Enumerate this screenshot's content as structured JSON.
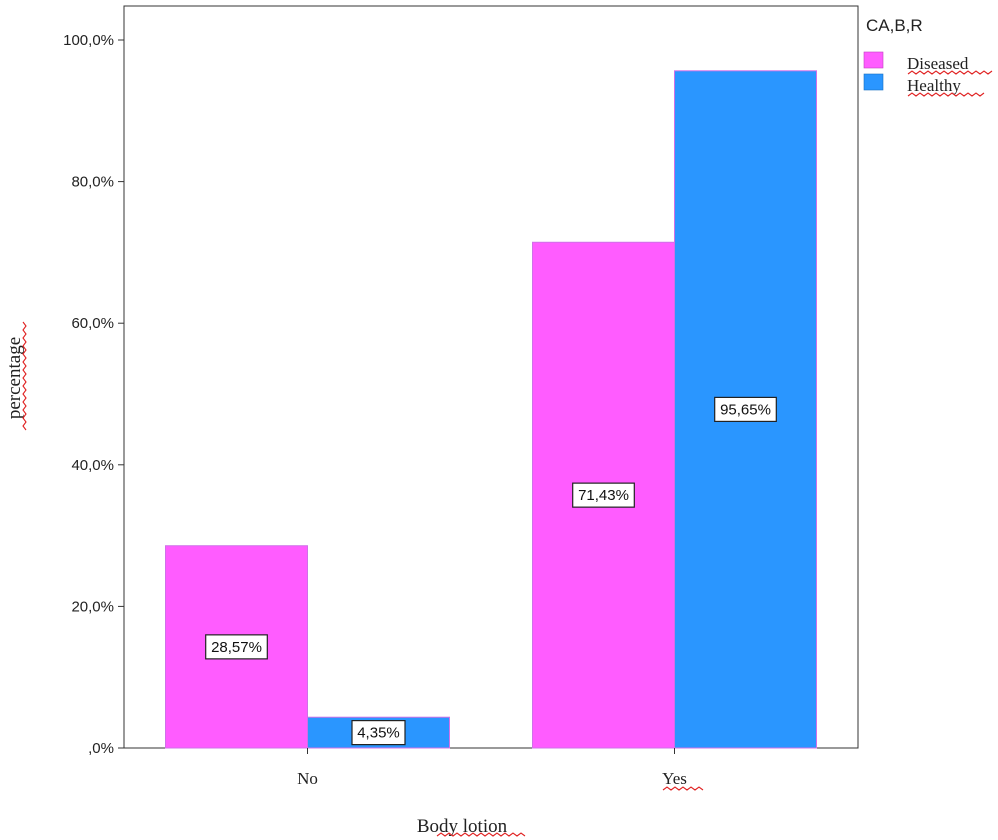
{
  "chart_data": {
    "type": "bar",
    "categories": [
      "No",
      "Yes"
    ],
    "series": [
      {
        "name": "Diseased",
        "values": [
          28.57,
          71.43
        ],
        "color": "#ff5cff"
      },
      {
        "name": "Healthy",
        "values": [
          4.35,
          95.65
        ],
        "color": "#2a96ff"
      }
    ],
    "data_labels": [
      [
        "28,57%",
        "71,43%"
      ],
      [
        "4,35%",
        "95,65%"
      ]
    ],
    "xlabel": "Body lotion",
    "ylabel": "percentage",
    "ylim": [
      0,
      100
    ],
    "yticks": [
      0,
      20,
      40,
      60,
      80,
      100
    ],
    "ytick_labels": [
      ",0%",
      "20,0%",
      "40,0%",
      "60,0%",
      "80,0%",
      "100,0%"
    ],
    "legend_title": "CA,B,R",
    "legend_position": "top-right",
    "grid": false
  }
}
